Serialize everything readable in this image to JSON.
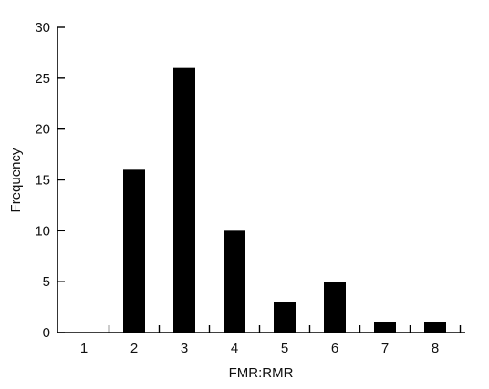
{
  "chart_data": {
    "type": "bar",
    "title": "",
    "xlabel": "FMR:RMR",
    "ylabel": "Frequency",
    "categories": [
      "1",
      "2",
      "3",
      "4",
      "5",
      "6",
      "7",
      "8"
    ],
    "values": [
      0,
      16,
      26,
      10,
      3,
      5,
      1,
      1
    ],
    "ylim": [
      0,
      30
    ],
    "yticks": [
      0,
      5,
      10,
      15,
      20,
      25,
      30
    ],
    "grid": false,
    "colors": {
      "bar": "#000000",
      "axis": "#000000",
      "text": "#111111"
    }
  }
}
